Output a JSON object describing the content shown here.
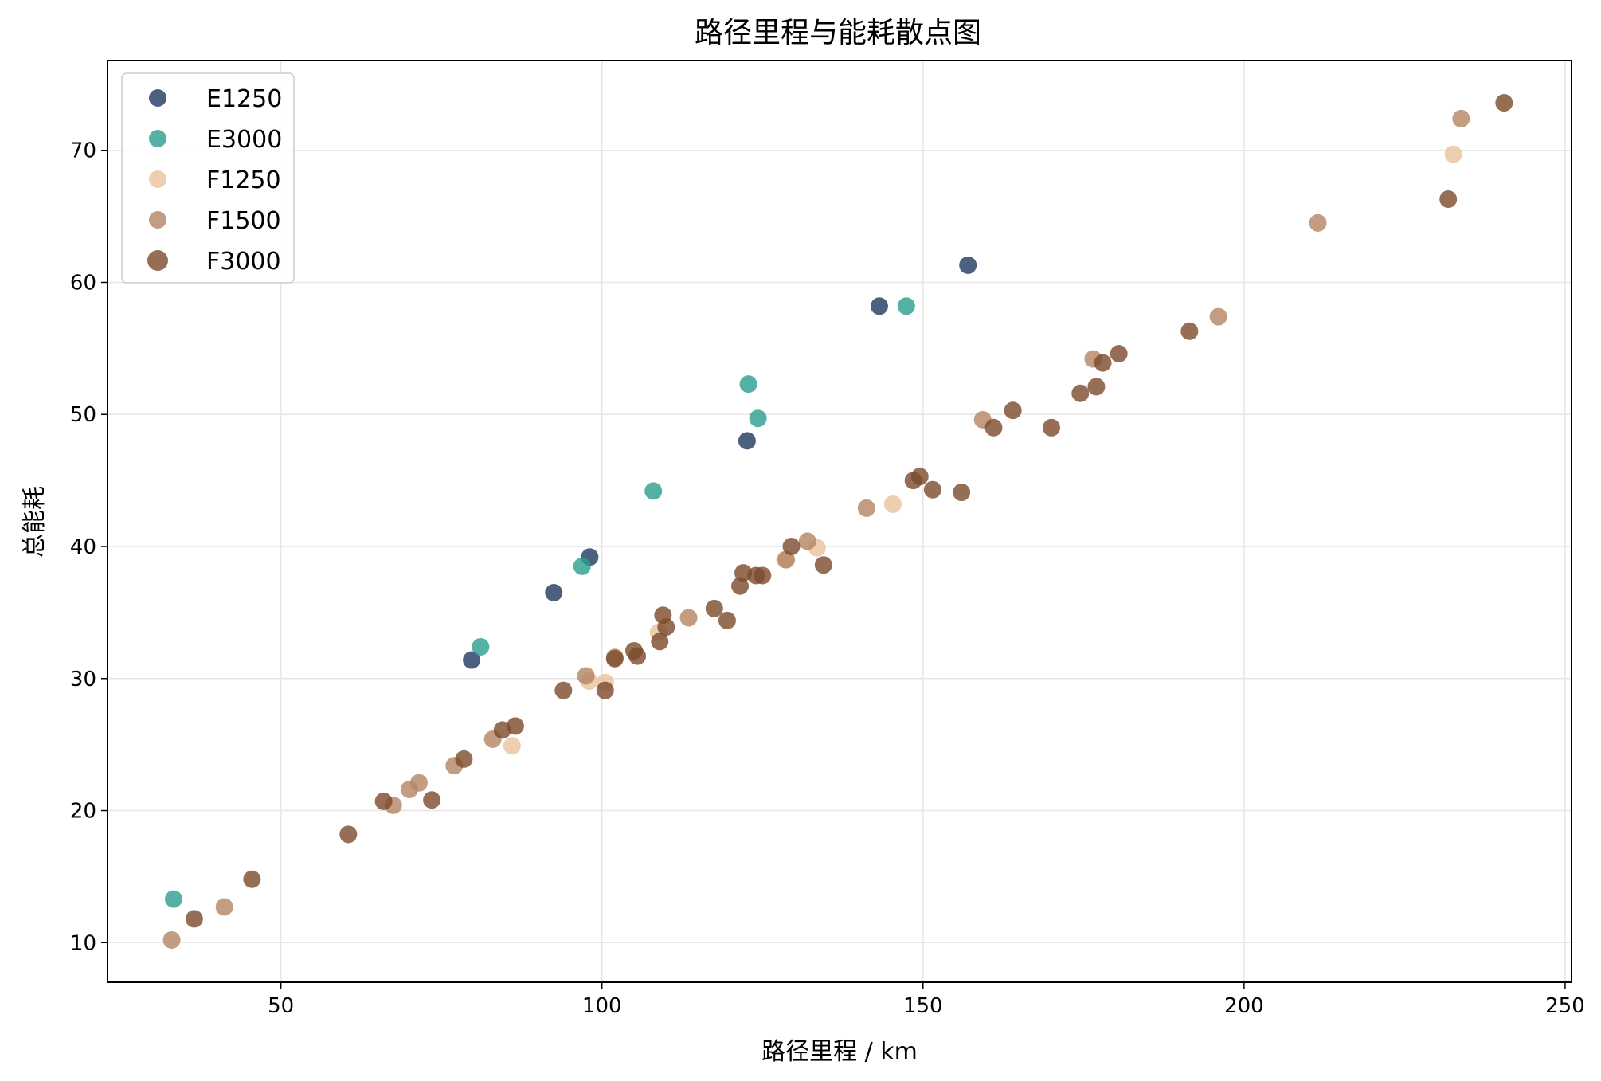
{
  "chart_data": {
    "type": "scatter",
    "title": "路径里程与能耗散点图",
    "xlabel": "路径里程 / km",
    "ylabel": "总能耗",
    "xlim": [
      23,
      251
    ],
    "ylim": [
      7,
      76.8
    ],
    "xticks": [
      50,
      100,
      150,
      200,
      250
    ],
    "yticks": [
      10,
      20,
      30,
      40,
      50,
      60,
      70
    ],
    "grid": true,
    "legend_position": "top-left",
    "series": [
      {
        "name": "E1250",
        "color": "#1f3a5f",
        "points": [
          [
            79.7,
            31.4
          ],
          [
            92.5,
            36.5
          ],
          [
            98.1,
            39.2
          ],
          [
            122.6,
            48.0
          ],
          [
            143.2,
            58.2
          ],
          [
            157.0,
            61.3
          ]
        ]
      },
      {
        "name": "E3000",
        "color": "#2a9d8f",
        "points": [
          [
            33.3,
            13.3
          ],
          [
            81.1,
            32.4
          ],
          [
            96.9,
            38.5
          ],
          [
            108.0,
            44.2
          ],
          [
            122.8,
            52.3
          ],
          [
            124.3,
            49.7
          ],
          [
            147.4,
            58.2
          ]
        ]
      },
      {
        "name": "F1250",
        "color": "#e9c29a",
        "points": [
          [
            86.0,
            24.9
          ],
          [
            100.5,
            29.7
          ],
          [
            128.5,
            39.0
          ],
          [
            133.5,
            39.9
          ],
          [
            145.3,
            43.2
          ],
          [
            232.6,
            69.7
          ],
          [
            108.8,
            33.5
          ],
          [
            98.0,
            29.8
          ]
        ]
      },
      {
        "name": "F1500",
        "color": "#b38461",
        "points": [
          [
            33.0,
            10.2
          ],
          [
            41.2,
            12.7
          ],
          [
            67.5,
            20.4
          ],
          [
            70.0,
            21.6
          ],
          [
            71.5,
            22.1
          ],
          [
            77.0,
            23.4
          ],
          [
            83.0,
            25.4
          ],
          [
            97.5,
            30.2
          ],
          [
            102.0,
            31.6
          ],
          [
            113.5,
            34.6
          ],
          [
            141.2,
            42.9
          ],
          [
            159.3,
            49.6
          ],
          [
            176.5,
            54.2
          ],
          [
            196.0,
            57.4
          ],
          [
            211.5,
            64.5
          ],
          [
            233.8,
            72.4
          ],
          [
            128.7,
            39.0
          ],
          [
            132.0,
            40.4
          ]
        ]
      },
      {
        "name": "F3000",
        "color": "#7a4a2a",
        "points": [
          [
            36.5,
            11.8
          ],
          [
            45.5,
            14.8
          ],
          [
            60.5,
            18.2
          ],
          [
            66.0,
            20.7
          ],
          [
            73.5,
            20.8
          ],
          [
            78.5,
            23.9
          ],
          [
            84.5,
            26.1
          ],
          [
            86.5,
            26.4
          ],
          [
            94.0,
            29.1
          ],
          [
            100.5,
            29.1
          ],
          [
            102.0,
            31.5
          ],
          [
            105.0,
            32.1
          ],
          [
            105.5,
            31.7
          ],
          [
            109.0,
            32.8
          ],
          [
            109.5,
            34.8
          ],
          [
            110.0,
            33.9
          ],
          [
            117.5,
            35.3
          ],
          [
            119.5,
            34.4
          ],
          [
            121.5,
            37.0
          ],
          [
            122.0,
            38.0
          ],
          [
            124.0,
            37.8
          ],
          [
            125.0,
            37.8
          ],
          [
            129.5,
            40.0
          ],
          [
            134.5,
            38.6
          ],
          [
            148.5,
            45.0
          ],
          [
            149.5,
            45.3
          ],
          [
            151.5,
            44.3
          ],
          [
            156.0,
            44.1
          ],
          [
            161.0,
            49.0
          ],
          [
            164.0,
            50.3
          ],
          [
            170.0,
            49.0
          ],
          [
            174.5,
            51.6
          ],
          [
            177.0,
            52.1
          ],
          [
            178.0,
            53.9
          ],
          [
            180.5,
            54.6
          ],
          [
            191.5,
            56.3
          ],
          [
            231.8,
            66.3
          ],
          [
            240.5,
            73.6
          ]
        ]
      }
    ]
  }
}
